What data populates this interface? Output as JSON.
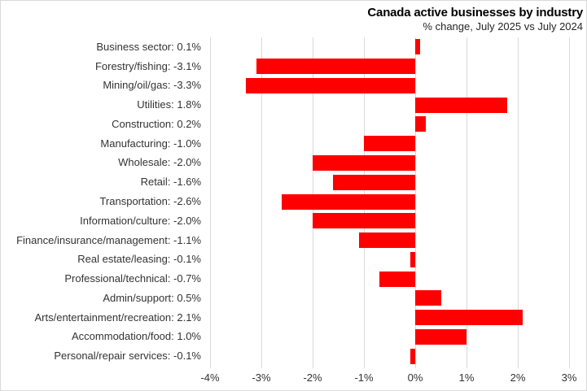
{
  "chart_data": {
    "type": "bar",
    "orientation": "horizontal",
    "title": "Canada active businesses by industry",
    "subtitle": "% change, July 2025 vs July 2024",
    "categories": [
      "Business sector",
      "Forestry/fishing",
      "Mining/oil/gas",
      "Utilities",
      "Construction",
      "Manufacturing",
      "Wholesale",
      "Retail",
      "Transportation",
      "Information/culture",
      "Finance/insurance/management",
      "Real estate/leasing",
      "Professional/technical",
      "Admin/support",
      "Arts/entertainment/recreation",
      "Accommodation/food",
      "Personal/repair services"
    ],
    "values": [
      0.1,
      -3.1,
      -3.3,
      1.8,
      0.2,
      -1.0,
      -2.0,
      -1.6,
      -2.6,
      -2.0,
      -1.1,
      -0.1,
      -0.7,
      0.5,
      2.1,
      1.0,
      -0.1
    ],
    "row_labels": [
      "Business sector:  0.1%",
      "Forestry/fishing:  -3.1%",
      "Mining/oil/gas:  -3.3%",
      "Utilities:  1.8%",
      "Construction:  0.2%",
      "Manufacturing:  -1.0%",
      "Wholesale:  -2.0%",
      "Retail:  -1.6%",
      "Transportation:  -2.6%",
      "Information/culture:  -2.0%",
      "Finance/insurance/management:  -1.1%",
      "Real estate/leasing:  -0.1%",
      "Professional/technical:  -0.7%",
      "Admin/support:  0.5%",
      "Arts/entertainment/recreation:  2.1%",
      "Accommodation/food:  1.0%",
      "Personal/repair services:  -0.1%"
    ],
    "x_ticks": [
      -4,
      -3,
      -2,
      -1,
      0,
      1,
      2,
      3
    ],
    "x_tick_labels": [
      "-4%",
      "-3%",
      "-2%",
      "-1%",
      "0%",
      "1%",
      "2%",
      "3%"
    ],
    "xlim": [
      -4,
      3
    ],
    "bar_color": "#FF0000",
    "gridline_color": "#D9D9D9",
    "legend": "none",
    "grid": "vertical"
  }
}
